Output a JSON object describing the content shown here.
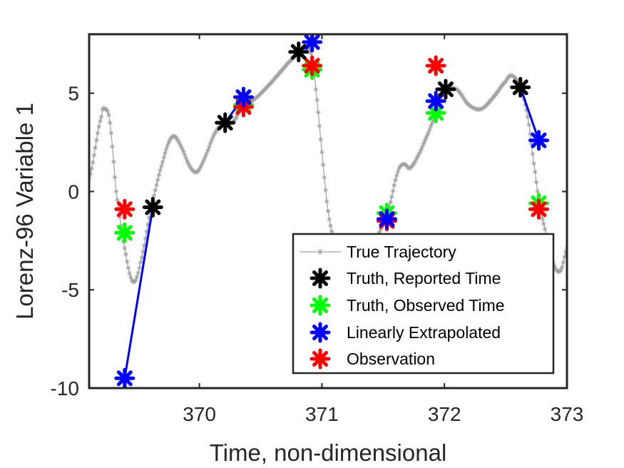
{
  "chart_data": {
    "type": "line",
    "title": "",
    "xlabel": "Time, non-dimensional",
    "ylabel": "Lorenz-96 Variable 1",
    "xlim": [
      369.1,
      373.0
    ],
    "ylim": [
      -10,
      8
    ],
    "xticks": [
      370,
      371,
      372,
      373
    ],
    "xtick_labels": [
      "370",
      "371",
      "372",
      "373"
    ],
    "yticks": [
      -10,
      -5,
      0,
      5
    ],
    "ytick_labels": [
      "-10",
      "-5",
      "0",
      "5"
    ],
    "grid": false,
    "legend_position": "lower-right",
    "colors": {
      "true_trajectory": "#a0a0a0",
      "truth_reported": "#000000",
      "truth_observed": "#00ff00",
      "extrapolated": "#0000ff",
      "observation": "#ff0000",
      "extrapolation_line": "#0000ff"
    },
    "trajectory_knots": [
      [
        369.1,
        0.7
      ],
      [
        369.2,
        3.8
      ],
      [
        369.23,
        4.2
      ],
      [
        369.27,
        3.5
      ],
      [
        369.32,
        0.0
      ],
      [
        369.4,
        -3.2
      ],
      [
        369.46,
        -4.6
      ],
      [
        369.52,
        -3.6
      ],
      [
        369.6,
        -1.0
      ],
      [
        369.7,
        1.5
      ],
      [
        369.78,
        2.8
      ],
      [
        369.85,
        2.3
      ],
      [
        369.92,
        1.3
      ],
      [
        369.98,
        1.0
      ],
      [
        370.05,
        1.8
      ],
      [
        370.12,
        2.9
      ],
      [
        370.2,
        3.5
      ],
      [
        370.27,
        3.5
      ],
      [
        370.35,
        4.3
      ],
      [
        370.45,
        4.7
      ],
      [
        370.55,
        5.3
      ],
      [
        370.65,
        6.0
      ],
      [
        370.75,
        6.7
      ],
      [
        370.82,
        7.1
      ],
      [
        370.88,
        7.4
      ],
      [
        370.92,
        6.8
      ],
      [
        370.95,
        5.2
      ],
      [
        371.0,
        2.0
      ],
      [
        371.05,
        -1.0
      ],
      [
        371.1,
        -2.5
      ],
      [
        371.14,
        -3.2
      ],
      [
        371.2,
        -3.5
      ],
      [
        371.35,
        -3.0
      ],
      [
        371.45,
        -2.3
      ],
      [
        371.55,
        -0.8
      ],
      [
        371.62,
        1.0
      ],
      [
        371.67,
        1.4
      ],
      [
        371.72,
        1.2
      ],
      [
        371.8,
        2.0
      ],
      [
        371.87,
        3.0
      ],
      [
        371.92,
        3.8
      ],
      [
        371.97,
        4.7
      ],
      [
        372.0,
        5.2
      ],
      [
        372.1,
        5.2
      ],
      [
        372.2,
        4.4
      ],
      [
        372.3,
        4.2
      ],
      [
        372.4,
        4.8
      ],
      [
        372.5,
        5.6
      ],
      [
        372.55,
        5.9
      ],
      [
        372.62,
        5.3
      ],
      [
        372.68,
        3.8
      ],
      [
        372.74,
        1.0
      ],
      [
        372.78,
        -0.8
      ],
      [
        372.83,
        -2.2
      ],
      [
        372.9,
        -3.8
      ],
      [
        372.95,
        -4.0
      ],
      [
        373.0,
        -2.9
      ]
    ],
    "series": [
      {
        "name": "True Trajectory",
        "kind": "trajectory",
        "marker": "asterisk",
        "color": "#a0a0a0"
      },
      {
        "name": "Truth, Reported Time",
        "kind": "markers",
        "marker": "asterisk",
        "color": "#000000",
        "x": [
          369.62,
          370.21,
          370.81,
          372.01,
          372.62
        ],
        "y": [
          -0.8,
          3.5,
          7.1,
          5.2,
          5.3
        ]
      },
      {
        "name": "Truth, Observed Time",
        "kind": "markers",
        "marker": "asterisk",
        "color": "#00ff00",
        "x": [
          369.39,
          370.36,
          370.92,
          371.53,
          371.93,
          372.77
        ],
        "y": [
          -2.1,
          4.4,
          6.2,
          -1.1,
          4.0,
          -0.6
        ]
      },
      {
        "name": "Linearly Extrapolated",
        "kind": "markers",
        "marker": "asterisk",
        "color": "#0000ff",
        "x": [
          369.39,
          370.36,
          370.92,
          371.53,
          371.93,
          372.77
        ],
        "y": [
          -9.5,
          4.8,
          7.6,
          -1.4,
          4.6,
          2.6
        ]
      },
      {
        "name": "Observation",
        "kind": "markers",
        "marker": "asterisk",
        "color": "#ff0000",
        "x": [
          369.39,
          370.36,
          370.92,
          371.53,
          371.93,
          372.77
        ],
        "y": [
          -0.9,
          4.3,
          6.4,
          -1.5,
          6.4,
          -0.9
        ]
      }
    ],
    "extrapolation_lines": [
      {
        "from": [
          369.62,
          -0.8
        ],
        "to": [
          369.39,
          -9.5
        ]
      },
      {
        "from": [
          370.21,
          3.5
        ],
        "to": [
          370.36,
          4.8
        ]
      },
      {
        "from": [
          370.81,
          7.1
        ],
        "to": [
          370.92,
          7.6
        ]
      },
      {
        "from": [
          372.01,
          5.2
        ],
        "to": [
          371.93,
          4.6
        ]
      },
      {
        "from": [
          372.62,
          5.3
        ],
        "to": [
          372.77,
          2.6
        ]
      }
    ]
  }
}
